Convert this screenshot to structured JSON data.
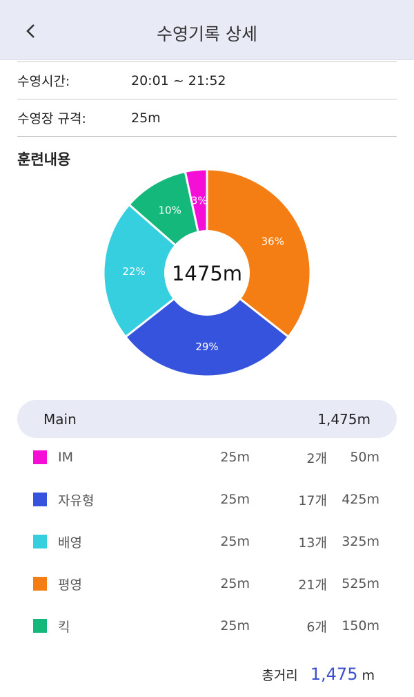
{
  "header": {
    "title": "수영기록 상세",
    "back_icon": "chevron-left-icon"
  },
  "info": [
    {
      "label": "수영시간:",
      "value": "20:01 ~ 21:52"
    },
    {
      "label": "수영장 규격:",
      "value": "25m"
    }
  ],
  "section_title": "훈련내용",
  "chart_data": {
    "type": "pie",
    "center_label": "1475m",
    "slices": [
      {
        "name": "평영",
        "value": 525,
        "label": "36%",
        "color": "#f57e14"
      },
      {
        "name": "자유형",
        "value": 425,
        "label": "29%",
        "color": "#3653dd"
      },
      {
        "name": "배영",
        "value": 325,
        "label": "22%",
        "color": "#35cfdf"
      },
      {
        "name": "킥",
        "value": 150,
        "label": "10%",
        "color": "#14b87b"
      },
      {
        "name": "IM",
        "value": 50,
        "label": "3%",
        "color": "#f50ed6"
      }
    ]
  },
  "main": {
    "label": "Main",
    "total": "1,475m"
  },
  "items": [
    {
      "name": "IM",
      "pool": "25m",
      "count": "2개",
      "distance": "50m",
      "color": "#f50ed6"
    },
    {
      "name": "자유형",
      "pool": "25m",
      "count": "17개",
      "distance": "425m",
      "color": "#3653dd"
    },
    {
      "name": "배영",
      "pool": "25m",
      "count": "13개",
      "distance": "325m",
      "color": "#35cfdf"
    },
    {
      "name": "평영",
      "pool": "25m",
      "count": "21개",
      "distance": "525m",
      "color": "#f57e14"
    },
    {
      "name": "킥",
      "pool": "25m",
      "count": "6개",
      "distance": "150m",
      "color": "#14b87b"
    }
  ],
  "total": {
    "label": "총거리",
    "value": "1,475",
    "unit": "m"
  }
}
